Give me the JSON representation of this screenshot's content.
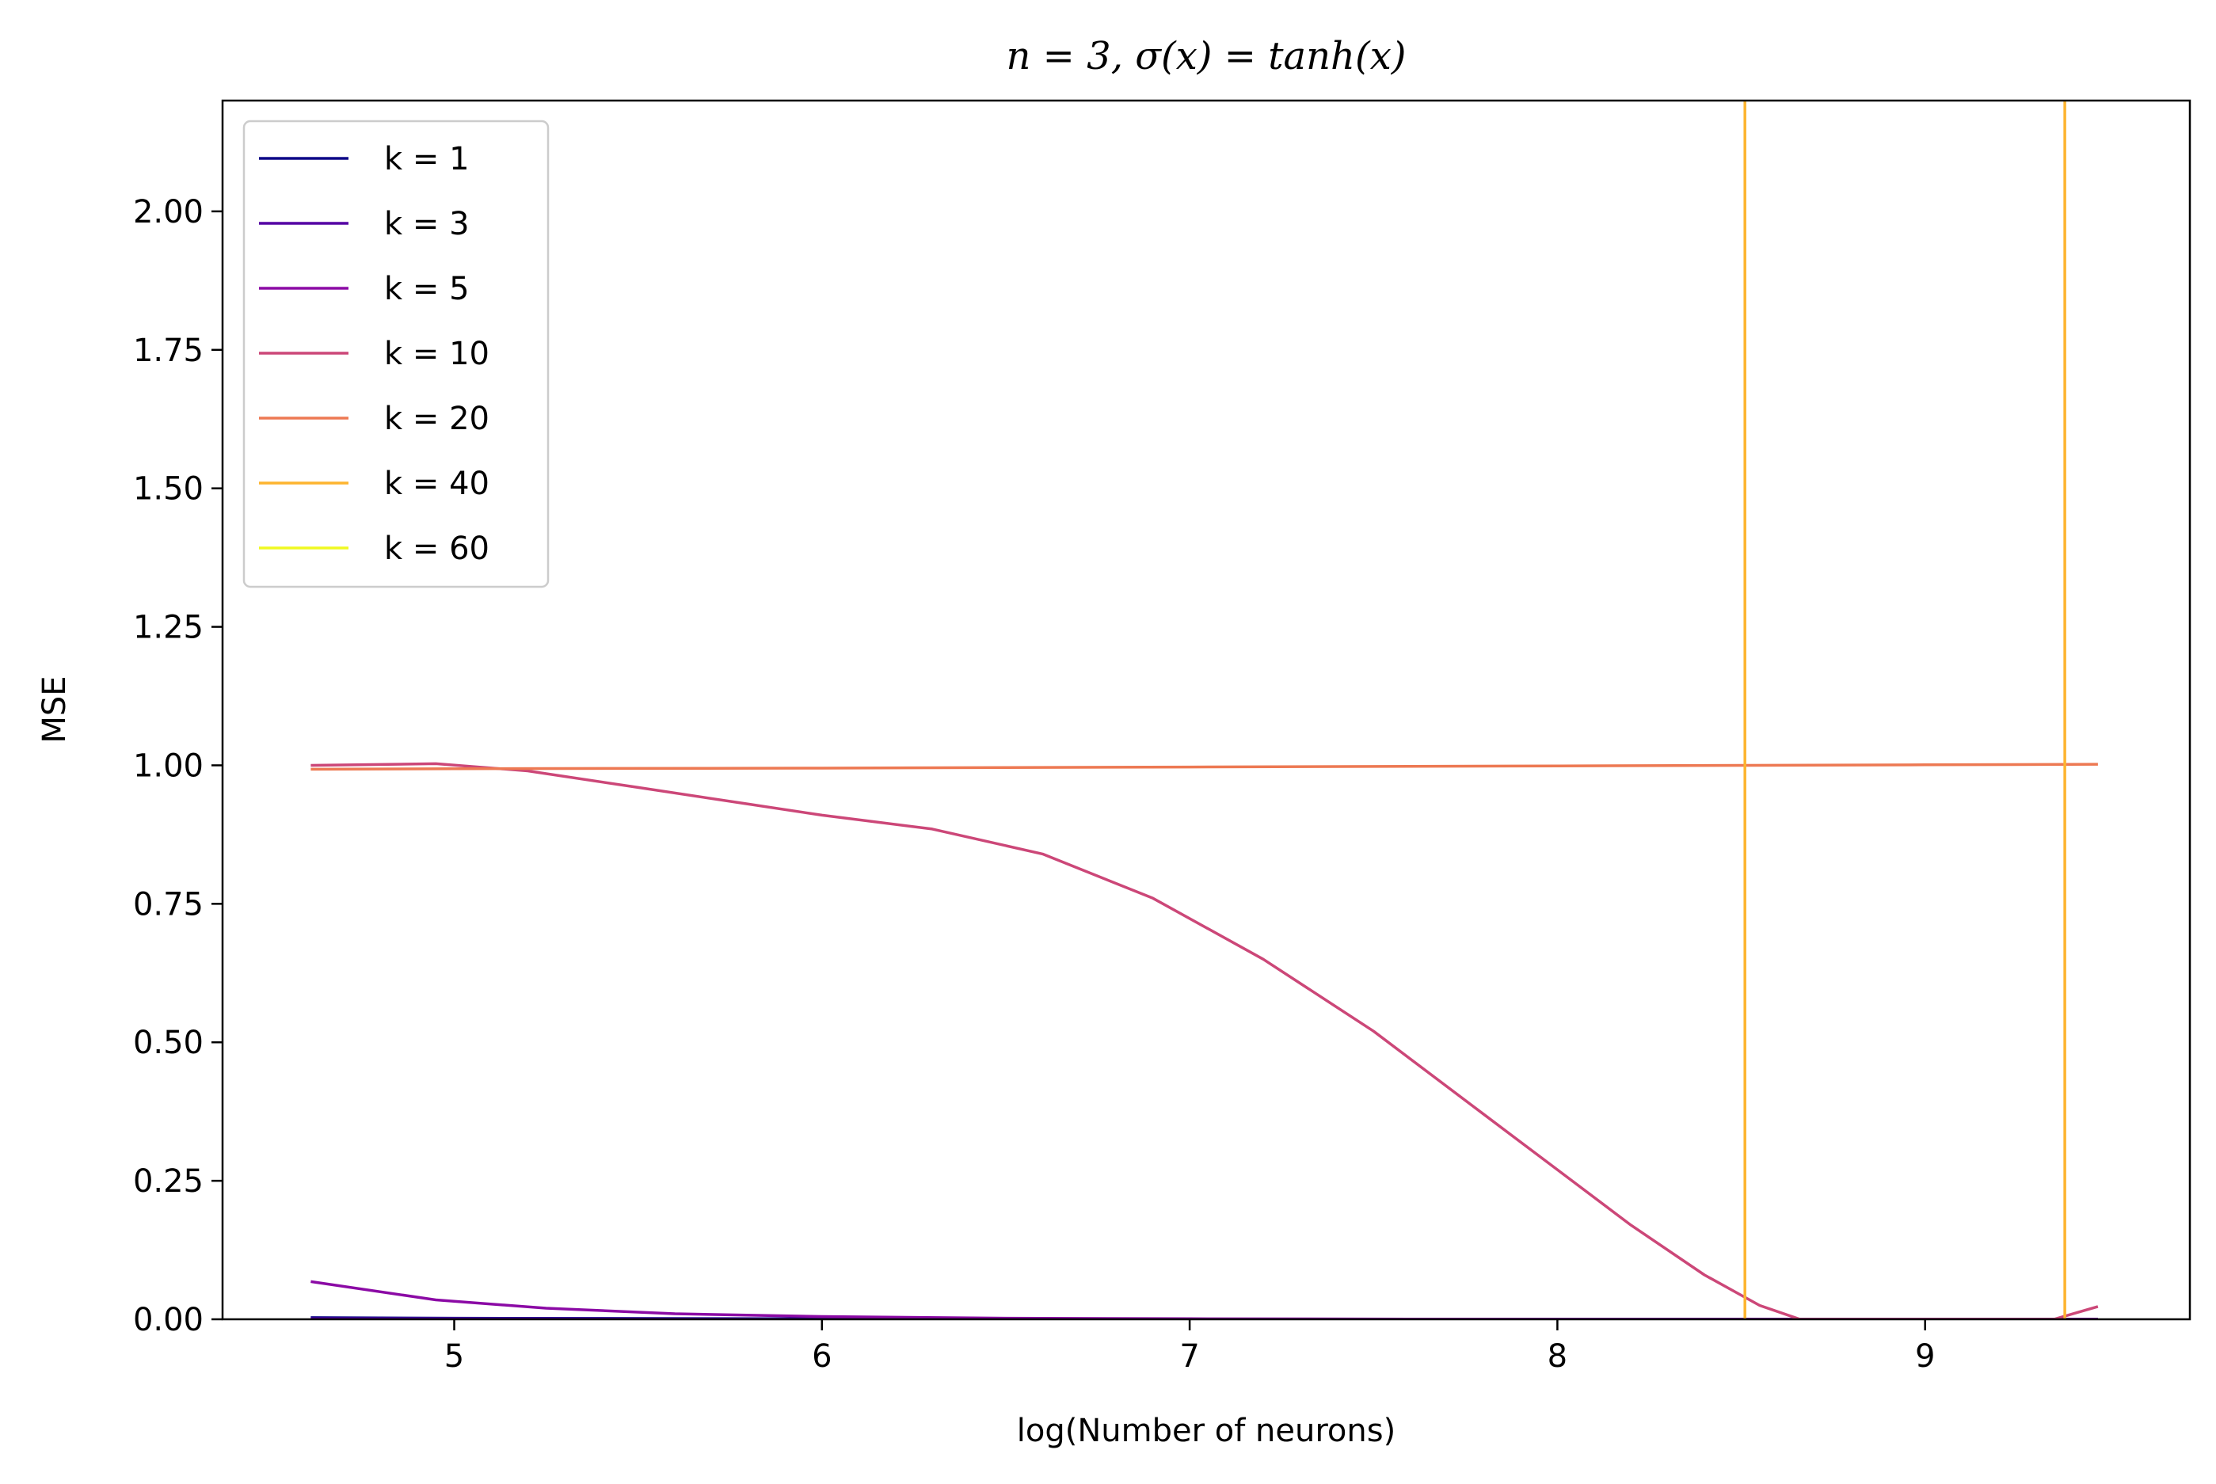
{
  "chart_data": {
    "type": "line",
    "title": "n = 3, σ(x) = tanh(x)",
    "xlabel": "log(Number of neurons)",
    "ylabel": "MSE",
    "xlim": [
      4.37,
      9.72
    ],
    "ylim": [
      0,
      2.2
    ],
    "xticks": [
      5,
      6,
      7,
      8,
      9
    ],
    "xtick_labels": [
      "5",
      "6",
      "7",
      "8",
      "9"
    ],
    "yticks": [
      0,
      0.25,
      0.5,
      0.75,
      1.0,
      1.25,
      1.5,
      1.75,
      2.0
    ],
    "ytick_labels": [
      "0.00",
      "0.25",
      "0.50",
      "0.75",
      "1.00",
      "1.25",
      "1.50",
      "1.75",
      "2.00"
    ],
    "grid": false,
    "legend_position": "top-left",
    "series": [
      {
        "name": "k = 1",
        "color": "#0d0887",
        "x": [
          4.61,
          5.0,
          6.0,
          7.0,
          8.0,
          9.0,
          9.47
        ],
        "y": [
          0.003,
          0.002,
          0.001,
          0.0,
          0.0,
          0.0,
          0.0
        ]
      },
      {
        "name": "k = 3",
        "color": "#5402a3",
        "x": [
          4.61,
          5.0,
          6.0,
          7.0,
          8.0,
          9.0,
          9.47
        ],
        "y": [
          0.001,
          0.001,
          0.0,
          0.0,
          0.0,
          0.0,
          0.0
        ]
      },
      {
        "name": "k = 5",
        "color": "#8b0aa5",
        "x": [
          4.61,
          4.95,
          5.25,
          5.6,
          6.0,
          6.5,
          7.0,
          8.0,
          9.0,
          9.47
        ],
        "y": [
          0.068,
          0.035,
          0.02,
          0.01,
          0.005,
          0.002,
          0.001,
          0.0,
          0.0,
          0.0
        ]
      },
      {
        "name": "k = 10",
        "color": "#cc4778",
        "x": [
          4.61,
          4.95,
          5.2,
          5.5,
          5.8,
          6.0,
          6.3,
          6.6,
          6.9,
          7.2,
          7.5,
          7.8,
          8.0,
          8.2,
          8.4,
          8.55,
          8.66,
          8.8,
          9.0,
          9.35,
          9.47
        ],
        "y": [
          1.0,
          1.003,
          0.99,
          0.96,
          0.93,
          0.91,
          0.885,
          0.84,
          0.76,
          0.65,
          0.52,
          0.37,
          0.27,
          0.17,
          0.08,
          0.025,
          0.0,
          0.0,
          0.0,
          0.0,
          0.023
        ]
      },
      {
        "name": "k = 20",
        "color": "#ed7953",
        "x": [
          4.61,
          5.0,
          6.0,
          7.0,
          8.0,
          9.0,
          9.47
        ],
        "y": [
          0.993,
          0.994,
          0.995,
          0.997,
          0.999,
          1.001,
          1.002
        ]
      },
      {
        "name": "k = 40",
        "color": "#fdb42f",
        "x": [
          8.51,
          8.51,
          null,
          9.38,
          9.38
        ],
        "y": [
          0,
          2.2,
          null,
          0,
          2.2
        ]
      },
      {
        "name": "k = 60",
        "color": "#f0f921",
        "x": [],
        "y": []
      }
    ]
  }
}
